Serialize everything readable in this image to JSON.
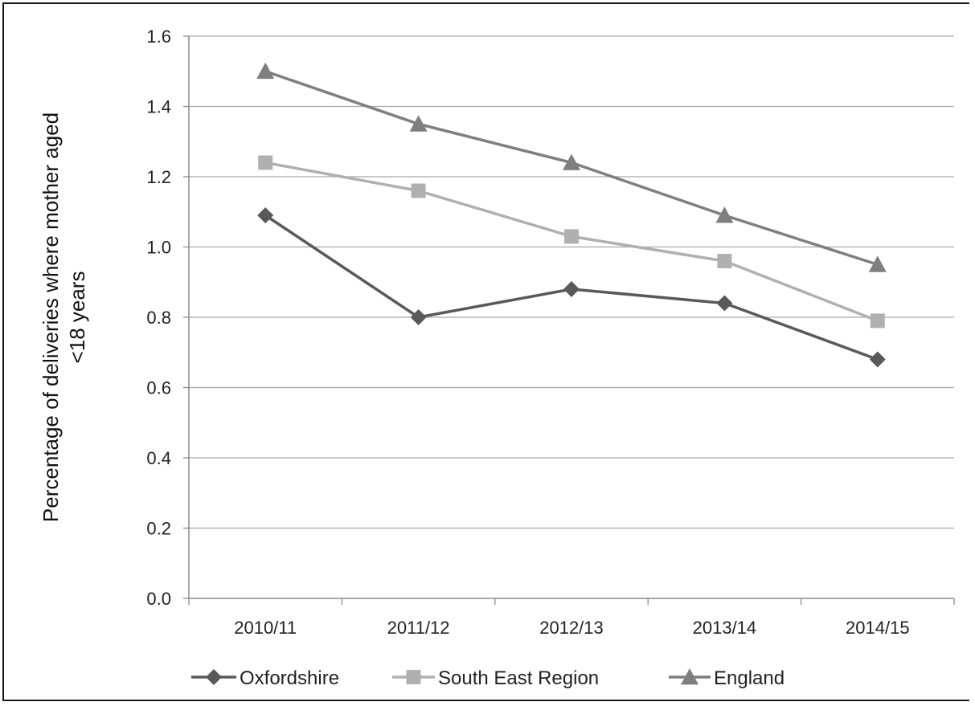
{
  "chart_data": {
    "type": "line",
    "categories": [
      "2010/11",
      "2011/12",
      "2012/13",
      "2013/14",
      "2014/15"
    ],
    "series": [
      {
        "name": "Oxfordshire",
        "values": [
          1.09,
          0.8,
          0.88,
          0.84,
          0.68
        ],
        "color": "#595959",
        "marker": "diamond"
      },
      {
        "name": "South East Region",
        "values": [
          1.24,
          1.16,
          1.03,
          0.96,
          0.79
        ],
        "color": "#b0b0b0",
        "marker": "square"
      },
      {
        "name": "England",
        "values": [
          1.5,
          1.35,
          1.24,
          1.09,
          0.95
        ],
        "color": "#7f7f7f",
        "marker": "triangle"
      }
    ],
    "ylabel_lines": [
      "Percentage of deliveries where mother aged",
      "<18 years"
    ],
    "ylim": [
      0,
      1.6
    ],
    "yticks": [
      "0.0",
      "0.2",
      "0.4",
      "0.6",
      "0.8",
      "1.0",
      "1.2",
      "1.4",
      "1.6"
    ],
    "grid": true,
    "legend_position": "bottom"
  }
}
